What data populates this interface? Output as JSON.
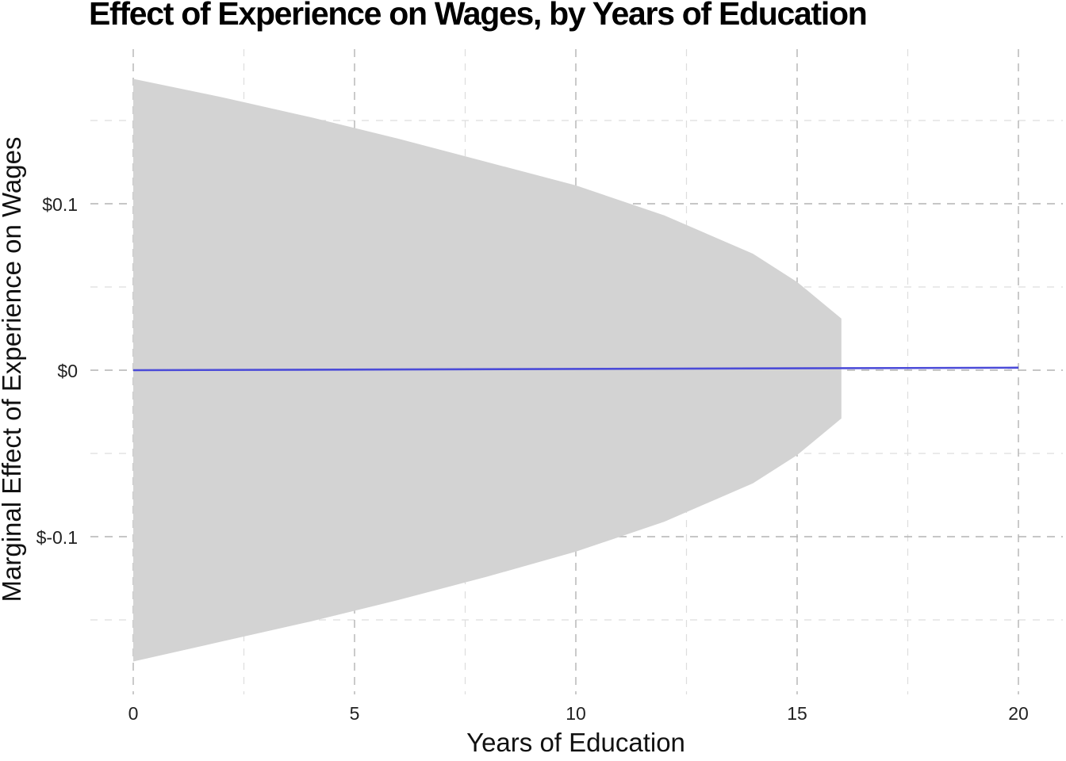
{
  "chart_data": {
    "type": "line",
    "title": "Effect of Experience on Wages, by Years of Education",
    "xlabel": "Years of Education",
    "ylabel": "Marginal Effect of Experience on Wages",
    "xlim": [
      0,
      20
    ],
    "ylim": [
      -0.18,
      0.18
    ],
    "x_ticks": [
      0,
      5,
      10,
      15,
      20
    ],
    "x_minor_ticks": [
      2.5,
      7.5,
      12.5,
      17.5
    ],
    "y_ticks": [
      {
        "value": -0.1,
        "label": "$-0.1"
      },
      {
        "value": 0,
        "label": "$0"
      },
      {
        "value": 0.1,
        "label": "$0.1"
      }
    ],
    "y_minor_ticks": [
      -0.15,
      -0.05,
      0.05,
      0.15
    ],
    "grid": true,
    "grid_style": "dashed",
    "series": [
      {
        "color": "#4b4bd8",
        "x": [
          0,
          20
        ],
        "y": [
          0.0,
          0.0015
        ]
      }
    ],
    "confidence_band": {
      "color": "#d3d3d3",
      "x": [
        0,
        2,
        4,
        6,
        8,
        10,
        12,
        14,
        15,
        16
      ],
      "lower": [
        -0.175,
        -0.163,
        -0.151,
        -0.138,
        -0.124,
        -0.109,
        -0.091,
        -0.068,
        -0.051,
        -0.029
      ],
      "upper": [
        0.175,
        0.164,
        0.152,
        0.139,
        0.125,
        0.111,
        0.093,
        0.07,
        0.053,
        0.031
      ]
    }
  }
}
